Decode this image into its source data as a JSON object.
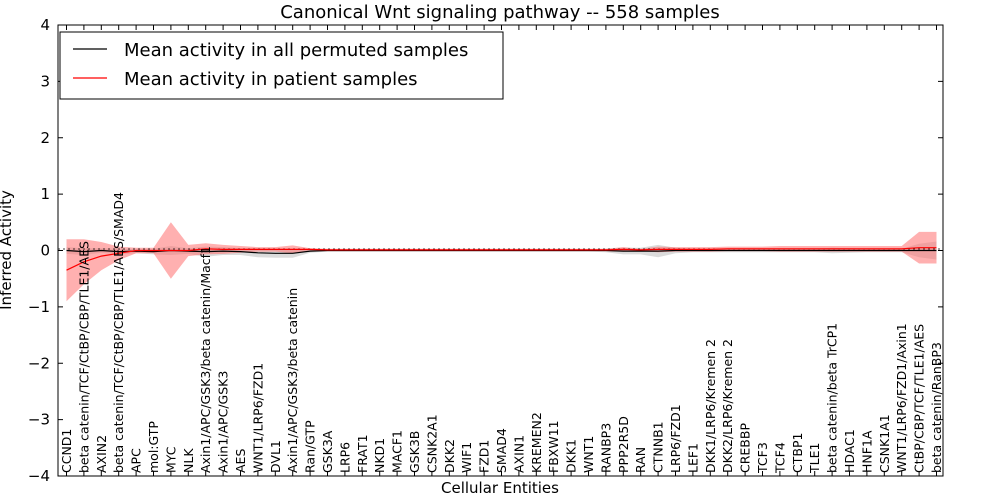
{
  "chart_data": {
    "type": "line",
    "title": "Canonical Wnt signaling pathway -- 558 samples",
    "xlabel": "Cellular Entities",
    "ylabel": "Inferred Activity",
    "ylim": [
      -4,
      4
    ],
    "yticks": [
      -4,
      -3,
      -2,
      -1,
      0,
      1,
      2,
      3,
      4
    ],
    "legend_position": "top-left",
    "colors": {
      "permuted": "#000000",
      "patient": "#ff0000",
      "permuted_band": "#c8c8c8",
      "patient_band": "#ff7070"
    },
    "categories": [
      "CCND1",
      "beta catenin/TCF/CtBP/CBP/TLE1/AES",
      "AXIN2",
      "beta catenin/TCF/CtBP/CBP/TLE1/AES/SMAD4",
      "APC",
      "mol:GTP",
      "MYC",
      "NLK",
      "Axin1/APC/GSK3/beta catenin/Macf1",
      "Axin1/APC/GSK3",
      "AES",
      "WNT1/LRP6/FZD1",
      "DVL1",
      "Axin1/APC/GSK3/beta catenin",
      "Ran/GTP",
      "GSK3A",
      "LRP6",
      "FRAT1",
      "NKD1",
      "MACF1",
      "GSK3B",
      "CSNK2A1",
      "DKK2",
      "WIF1",
      "FZD1",
      "SMAD4",
      "AXIN1",
      "KREMEN2",
      "FBXW11",
      "DKK1",
      "WNT1",
      "RANBP3",
      "PPP2R5D",
      "RAN",
      "CTNNB1",
      "LRP6/FZD1",
      "LEF1",
      "DKK1/LRP6/Kremen 2",
      "DKK2/LRP6/Kremen 2",
      "CREBBP",
      "TCF3",
      "TCF4",
      "CTBP1",
      "TLE1",
      "beta catenin/beta TrCP1",
      "HDAC1",
      "HNF1A",
      "CSNK1A1",
      "WNT1/LRP6/FZD1/Axin1",
      "CtBP/CBP/TCF/TLE1/AES",
      "beta catenin/RanBP3"
    ],
    "series": [
      {
        "name": "Mean activity in all permuted samples",
        "values": [
          0.0,
          -0.02,
          0.0,
          -0.02,
          -0.01,
          -0.02,
          0.0,
          -0.01,
          -0.02,
          -0.01,
          -0.02,
          -0.04,
          -0.05,
          -0.05,
          -0.01,
          0,
          0,
          0,
          0,
          0,
          0,
          0,
          0,
          0,
          0,
          0,
          0,
          0,
          0,
          0,
          0,
          0,
          -0.01,
          -0.01,
          -0.01,
          0,
          0,
          0,
          0,
          0,
          0,
          0,
          0,
          0,
          0,
          0,
          0,
          0,
          0,
          0,
          0
        ],
        "band": [
          0.06,
          0.06,
          0.04,
          0.05,
          0.04,
          0.05,
          0.08,
          0.05,
          0.09,
          0.07,
          0.06,
          0.08,
          0.08,
          0.08,
          0.03,
          0.02,
          0.02,
          0.02,
          0.02,
          0.02,
          0.02,
          0.02,
          0.02,
          0.02,
          0.02,
          0.02,
          0.02,
          0.02,
          0.02,
          0.02,
          0.02,
          0.03,
          0.06,
          0.06,
          0.11,
          0.05,
          0.03,
          0.03,
          0.03,
          0.03,
          0.03,
          0.03,
          0.03,
          0.03,
          0.05,
          0.04,
          0.03,
          0.03,
          0.03,
          0.12,
          0.16
        ]
      },
      {
        "name": "Mean activity in patient samples",
        "values": [
          -0.35,
          -0.2,
          -0.1,
          -0.05,
          0.0,
          0.0,
          0.0,
          0.0,
          0.03,
          0.02,
          0.02,
          0.02,
          0.02,
          0.02,
          0.02,
          0.01,
          0.01,
          0.01,
          0.01,
          0.01,
          0.01,
          0.01,
          0.01,
          0.01,
          0.01,
          0.01,
          0.01,
          0.01,
          0.01,
          0.01,
          0.01,
          0.01,
          0.02,
          0.01,
          0.02,
          0.02,
          0.02,
          0.02,
          0.03,
          0.03,
          0.03,
          0.03,
          0.03,
          0.03,
          0.03,
          0.03,
          0.03,
          0.03,
          0.03,
          0.05,
          0.05
        ],
        "band": [
          0.55,
          0.4,
          0.25,
          0.12,
          0.05,
          0.05,
          0.5,
          0.1,
          0.1,
          0.08,
          0.06,
          0.04,
          0.04,
          0.07,
          0.02,
          0.02,
          0.02,
          0.02,
          0.02,
          0.02,
          0.02,
          0.02,
          0.02,
          0.02,
          0.02,
          0.02,
          0.02,
          0.02,
          0.02,
          0.02,
          0.02,
          0.02,
          0.04,
          0.02,
          0.05,
          0.04,
          0.04,
          0.04,
          0.04,
          0.04,
          0.04,
          0.05,
          0.05,
          0.05,
          0.05,
          0.05,
          0.05,
          0.05,
          0.05,
          0.28,
          0.28
        ]
      }
    ]
  }
}
